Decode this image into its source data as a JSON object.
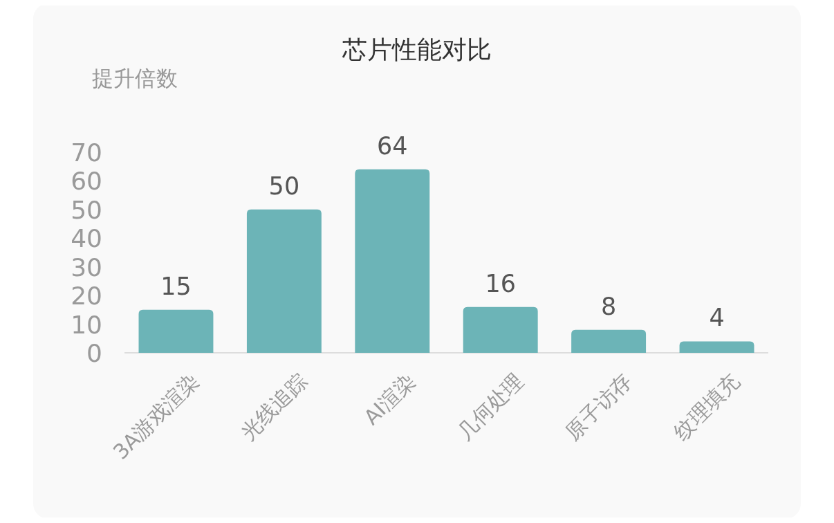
{
  "chart_data": {
    "type": "bar",
    "title": "芯片性能对比",
    "ylabel": "提升倍数",
    "categories": [
      "3A游戏渲染",
      "光线追踪",
      "AI渲染",
      "几何处理",
      "原子访存",
      "纹理填充"
    ],
    "values": [
      15,
      50,
      64,
      16,
      8,
      4
    ],
    "color": "#6cb4b7",
    "ylim": [
      0,
      70
    ],
    "yticks": [
      0,
      10,
      20,
      30,
      40,
      50,
      60,
      70
    ],
    "grid": false,
    "data_labels": true
  }
}
